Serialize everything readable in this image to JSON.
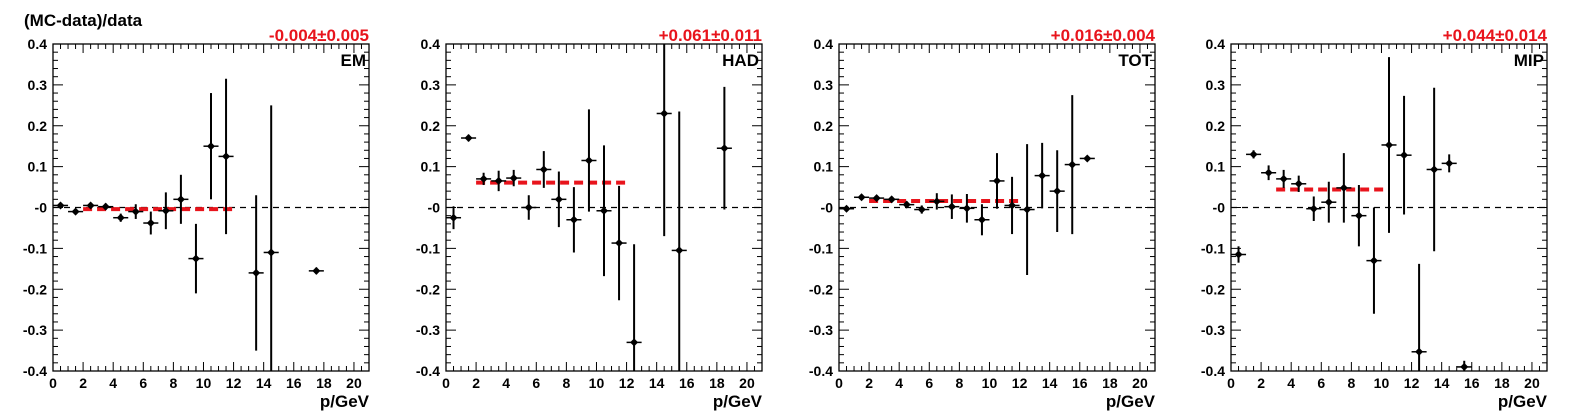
{
  "figure": {
    "ylabel": "(MC-data)/data",
    "colors": {
      "frame": "#000000",
      "marker": "#000000",
      "fit": "#e8141c",
      "fit_label": "#e8141c",
      "zero_line": "#000000"
    }
  },
  "chart_data": [
    {
      "type": "scatter",
      "name": "EM",
      "fit_label": "-0.004±0.005",
      "fit": {
        "value": -0.004,
        "error": 0.005,
        "x_range": [
          2,
          12
        ]
      },
      "xlabel": "p/GeV",
      "xlim": [
        0,
        21
      ],
      "ylim": [
        -0.4,
        0.4
      ],
      "x_ticks": [
        "0",
        "2",
        "4",
        "6",
        "8",
        "10",
        "12",
        "14",
        "16",
        "18",
        "20"
      ],
      "y_ticks": [
        "-0.4",
        "-0.3",
        "-0.2",
        "-0.1",
        "-0",
        "0.1",
        "0.2",
        "0.3",
        "0.4"
      ],
      "zero_line": true,
      "points": [
        {
          "x": 0.5,
          "y": 0.005,
          "err": 0.005
        },
        {
          "x": 1.5,
          "y": -0.01,
          "err": 0.007
        },
        {
          "x": 2.5,
          "y": 0.005,
          "err": 0.007
        },
        {
          "x": 3.5,
          "y": 0.002,
          "err": 0.008
        },
        {
          "x": 4.5,
          "y": -0.025,
          "err": 0.01
        },
        {
          "x": 5.5,
          "y": -0.01,
          "err": 0.018
        },
        {
          "x": 6.5,
          "y": -0.038,
          "err": 0.028
        },
        {
          "x": 7.5,
          "y": -0.008,
          "err": 0.045
        },
        {
          "x": 8.5,
          "y": 0.02,
          "err": 0.06
        },
        {
          "x": 9.5,
          "y": -0.125,
          "err": 0.085
        },
        {
          "x": 10.5,
          "y": 0.15,
          "err": 0.13
        },
        {
          "x": 11.5,
          "y": 0.125,
          "err": 0.19
        },
        {
          "x": 13.5,
          "y": -0.16,
          "err": 0.19
        },
        {
          "x": 14.5,
          "y": -0.11,
          "err": 0.36
        },
        {
          "x": 17.5,
          "y": -0.155,
          "err": 0.008
        }
      ]
    },
    {
      "type": "scatter",
      "name": "HAD",
      "fit_label": "+0.061±0.011",
      "fit": {
        "value": 0.061,
        "error": 0.011,
        "x_range": [
          2,
          12
        ]
      },
      "xlabel": "p/GeV",
      "xlim": [
        0,
        21
      ],
      "ylim": [
        -0.4,
        0.4
      ],
      "x_ticks": [
        "0",
        "2",
        "4",
        "6",
        "8",
        "10",
        "12",
        "14",
        "16",
        "18",
        "20"
      ],
      "y_ticks": [
        "-0.4",
        "-0.3",
        "-0.2",
        "-0.1",
        "-0",
        "0.1",
        "0.2",
        "0.3",
        "0.4"
      ],
      "zero_line": true,
      "points": [
        {
          "x": 0.5,
          "y": -0.025,
          "err": 0.028
        },
        {
          "x": 1.5,
          "y": 0.17,
          "err": 0.008
        },
        {
          "x": 2.5,
          "y": 0.07,
          "err": 0.015
        },
        {
          "x": 3.5,
          "y": 0.065,
          "err": 0.025
        },
        {
          "x": 4.5,
          "y": 0.072,
          "err": 0.02
        },
        {
          "x": 5.5,
          "y": 0.0,
          "err": 0.03
        },
        {
          "x": 6.5,
          "y": 0.093,
          "err": 0.045
        },
        {
          "x": 7.5,
          "y": 0.02,
          "err": 0.068
        },
        {
          "x": 8.5,
          "y": -0.03,
          "err": 0.08
        },
        {
          "x": 9.5,
          "y": 0.115,
          "err": 0.125
        },
        {
          "x": 10.5,
          "y": -0.008,
          "err": 0.16
        },
        {
          "x": 11.5,
          "y": -0.087,
          "err": 0.14
        },
        {
          "x": 12.5,
          "y": -0.33,
          "err": 0.24
        },
        {
          "x": 14.5,
          "y": 0.23,
          "err": 0.3
        },
        {
          "x": 15.5,
          "y": -0.105,
          "err": 0.34
        },
        {
          "x": 18.5,
          "y": 0.145,
          "err": 0.15
        }
      ]
    },
    {
      "type": "scatter",
      "name": "TOT",
      "fit_label": "+0.016±0.004",
      "fit": {
        "value": 0.016,
        "error": 0.004,
        "x_range": [
          2,
          12
        ]
      },
      "xlabel": "p/GeV",
      "xlim": [
        0,
        21
      ],
      "ylim": [
        -0.4,
        0.4
      ],
      "x_ticks": [
        "0",
        "2",
        "4",
        "6",
        "8",
        "10",
        "12",
        "14",
        "16",
        "18",
        "20"
      ],
      "y_ticks": [
        "-0.4",
        "-0.3",
        "-0.2",
        "-0.1",
        "-0",
        "0.1",
        "0.2",
        "0.3",
        "0.4"
      ],
      "zero_line": true,
      "points": [
        {
          "x": 0.5,
          "y": -0.003,
          "err": 0.005
        },
        {
          "x": 1.5,
          "y": 0.025,
          "err": 0.006
        },
        {
          "x": 2.5,
          "y": 0.023,
          "err": 0.006
        },
        {
          "x": 3.5,
          "y": 0.02,
          "err": 0.006
        },
        {
          "x": 4.5,
          "y": 0.007,
          "err": 0.008
        },
        {
          "x": 5.5,
          "y": -0.005,
          "err": 0.01
        },
        {
          "x": 6.5,
          "y": 0.015,
          "err": 0.02
        },
        {
          "x": 7.5,
          "y": 0.002,
          "err": 0.03
        },
        {
          "x": 8.5,
          "y": -0.002,
          "err": 0.035
        },
        {
          "x": 9.5,
          "y": -0.03,
          "err": 0.038
        },
        {
          "x": 10.5,
          "y": 0.065,
          "err": 0.068
        },
        {
          "x": 11.5,
          "y": 0.005,
          "err": 0.07
        },
        {
          "x": 12.5,
          "y": -0.005,
          "err": 0.16
        },
        {
          "x": 13.5,
          "y": 0.078,
          "err": 0.08
        },
        {
          "x": 14.5,
          "y": 0.04,
          "err": 0.1
        },
        {
          "x": 15.5,
          "y": 0.105,
          "err": 0.17
        },
        {
          "x": 16.5,
          "y": 0.12,
          "err": 0.006
        }
      ]
    },
    {
      "type": "scatter",
      "name": "MIP",
      "fit_label": "+0.044±0.014",
      "fit": {
        "value": 0.044,
        "error": 0.014,
        "x_range": [
          3,
          10.5
        ]
      },
      "xlabel": "p/GeV",
      "xlim": [
        0,
        21
      ],
      "ylim": [
        -0.4,
        0.4
      ],
      "x_ticks": [
        "0",
        "2",
        "4",
        "6",
        "8",
        "10",
        "12",
        "14",
        "16",
        "18",
        "20"
      ],
      "y_ticks": [
        "-0.4",
        "-0.3",
        "-0.2",
        "-0.1",
        "-0",
        "0.1",
        "0.2",
        "0.3",
        "0.4"
      ],
      "zero_line": true,
      "points": [
        {
          "x": 0.5,
          "y": -0.115,
          "err": 0.02
        },
        {
          "x": 1.5,
          "y": 0.13,
          "err": 0.01
        },
        {
          "x": 2.5,
          "y": 0.085,
          "err": 0.018
        },
        {
          "x": 3.5,
          "y": 0.07,
          "err": 0.022
        },
        {
          "x": 4.5,
          "y": 0.058,
          "err": 0.02
        },
        {
          "x": 5.5,
          "y": -0.003,
          "err": 0.03
        },
        {
          "x": 6.5,
          "y": 0.013,
          "err": 0.05
        },
        {
          "x": 7.5,
          "y": 0.048,
          "err": 0.085
        },
        {
          "x": 8.5,
          "y": -0.02,
          "err": 0.075
        },
        {
          "x": 9.5,
          "y": -0.13,
          "err": 0.13
        },
        {
          "x": 10.5,
          "y": 0.153,
          "err": 0.215
        },
        {
          "x": 11.5,
          "y": 0.128,
          "err": 0.145
        },
        {
          "x": 12.5,
          "y": -0.353,
          "err": 0.215
        },
        {
          "x": 13.5,
          "y": 0.093,
          "err": 0.2
        },
        {
          "x": 14.5,
          "y": 0.108,
          "err": 0.022
        },
        {
          "x": 15.5,
          "y": -0.39,
          "err": 0.015
        }
      ]
    }
  ]
}
